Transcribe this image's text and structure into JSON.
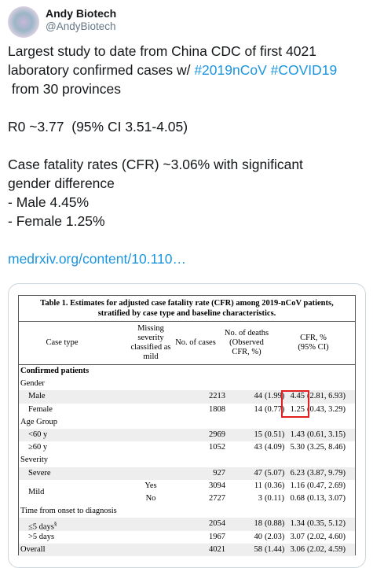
{
  "tweet": {
    "name": "Andy Biotech",
    "handle": "@AndyBiotech",
    "line1": "Largest study to date from China CDC of first 4021",
    "line2": "laboratory confirmed cases w/ ",
    "hashtags": [
      "#2019nCoV",
      "#COVID19"
    ],
    "line3": " from 30 provinces",
    "r0": "R0 ~3.77  (95% CI 3.51-4.05)",
    "cfr1": "Case fatality rates (CFR) ~3.06% with significant",
    "cfr2": "gender difference",
    "male": "- Male 4.45%",
    "female": "- Female 1.25%",
    "link": "medrxiv.org/content/10.110…"
  },
  "table": {
    "title": [
      "Table 1. Estimates for adjusted case fatality rate (CFR) among 2019-nCoV patients,",
      "stratified by case type and baseline characteristics."
    ],
    "headers": [
      [
        "Case type"
      ],
      [
        "Missing",
        "severity",
        "classified as",
        "mild"
      ],
      [
        "No. of cases"
      ],
      [
        "No. of deaths",
        "(Observed",
        "CFR, %)"
      ],
      [
        "CFR, %",
        "(95% CI)"
      ]
    ],
    "rows": [
      {
        "label": "Confirmed patients",
        "bold": true
      },
      {
        "label": "Gender"
      },
      {
        "label": "Male",
        "indent": true,
        "cases": "2213",
        "deaths": "44",
        "obs": "(1.99)",
        "cfr": "4.45",
        "ci": "(2.81, 6.93)",
        "shade": true,
        "highlight": true
      },
      {
        "label": "Female",
        "indent": true,
        "cases": "1808",
        "deaths": "14",
        "obs": "(0.77)",
        "cfr": "1.25",
        "ci": "(0.43, 3.29)",
        "highlight": true
      },
      {
        "label": "Age Group"
      },
      {
        "label": "<60 y",
        "indent": true,
        "cases": "2969",
        "deaths": "15",
        "obs": "(0.51)",
        "cfr": "1.43",
        "ci": "(0.61, 3.15)",
        "shade": true
      },
      {
        "label": "≥60 y",
        "indent": true,
        "cases": "1052",
        "deaths": "43",
        "obs": "(4.09)",
        "cfr": "5.30",
        "ci": "(3.25, 8.46)"
      },
      {
        "label": "Severity"
      },
      {
        "label": "Severe",
        "indent": true,
        "cases": "927",
        "deaths": "47",
        "obs": "(5.07)",
        "cfr": "6.23",
        "ci": "(3.87, 9.79)",
        "shade": true
      },
      {
        "label": "Mild",
        "indent": true,
        "missing": "Yes",
        "cases": "3094",
        "deaths": "11",
        "obs": "(0.36)",
        "cfr": "1.16",
        "ci": "(0.47, 2.69)"
      },
      {
        "missing": "No",
        "cases": "2727",
        "deaths": "3",
        "obs": "(0.11)",
        "cfr": "0.68",
        "ci": "(0.13, 3.07)"
      },
      {
        "label": "Time from onset to diagnosis"
      },
      {
        "label": "≤5 days",
        "sup": "§",
        "indent": true,
        "cases": "2054",
        "deaths": "18",
        "obs": "(0.88)",
        "cfr": "1.34",
        "ci": "(0.35, 5.12)",
        "shade": true
      },
      {
        "label": ">5 days",
        "indent": true,
        "cases": "1967",
        "deaths": "40",
        "obs": "(2.03)",
        "cfr": "3.07",
        "ci": "(2.02, 4.60)"
      },
      {
        "label": "Overall",
        "cases": "4021",
        "deaths": "58",
        "obs": "(1.44)",
        "cfr": "3.06",
        "ci": "(2.02, 4.59)",
        "shade": true
      }
    ]
  }
}
